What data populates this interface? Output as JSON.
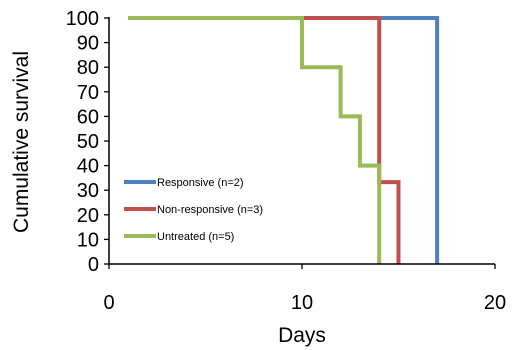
{
  "chart_data": {
    "type": "line",
    "step": true,
    "title": "",
    "xlabel": "Days",
    "ylabel": "Cumulative survival",
    "xlim": [
      0,
      20
    ],
    "ylim": [
      0,
      100
    ],
    "x_ticks": [
      0,
      10,
      20
    ],
    "y_ticks": [
      0,
      10,
      20,
      30,
      40,
      50,
      60,
      70,
      80,
      90,
      100
    ],
    "grid": false,
    "legend_position": "bottom-left",
    "series": [
      {
        "name": "Responsive (n=2)",
        "color": "#4f81bd",
        "x": [
          1,
          17,
          17
        ],
        "y": [
          100,
          100,
          0
        ]
      },
      {
        "name": "Non-responsive (n=3)",
        "color": "#c0504d",
        "x": [
          1,
          14,
          14,
          15,
          15
        ],
        "y": [
          100,
          100,
          33.3,
          33.3,
          0
        ]
      },
      {
        "name": "Untreated (n=5)",
        "color": "#9bbb59",
        "x": [
          1,
          10,
          10,
          12,
          12,
          13,
          13,
          14,
          14
        ],
        "y": [
          100,
          100,
          80,
          80,
          60,
          60,
          40,
          40,
          0
        ]
      }
    ]
  }
}
